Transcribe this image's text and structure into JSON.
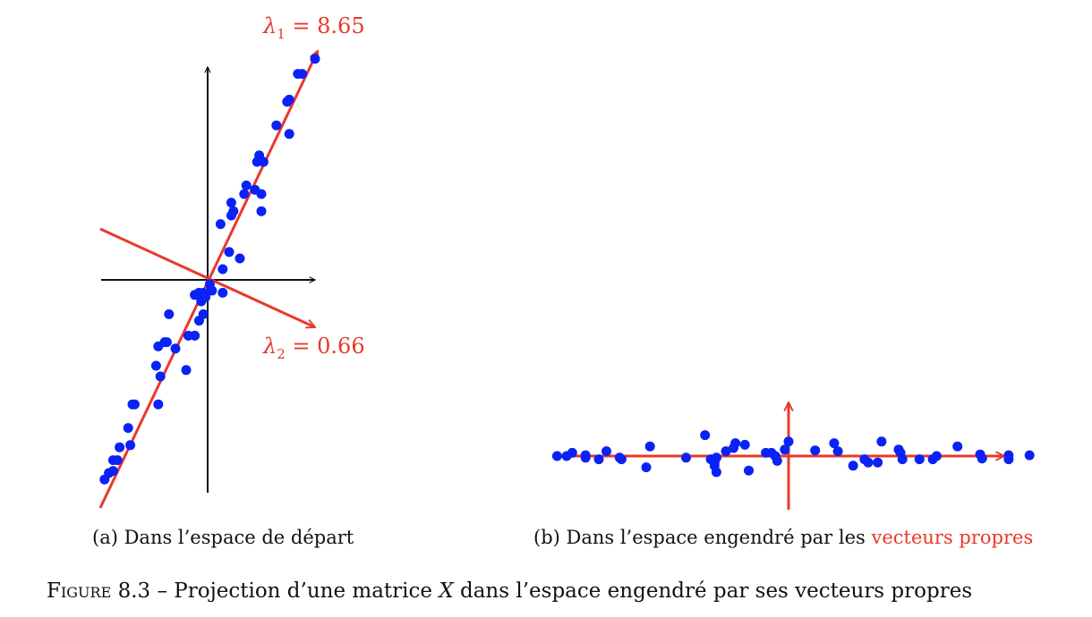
{
  "panel_a": {
    "caption": "(a) Dans l’espace de départ",
    "lambda1": {
      "symbol": "λ",
      "sub": "1",
      "value": "= 8.65"
    },
    "lambda2": {
      "symbol": "λ",
      "sub": "2",
      "value": "= 0.66"
    }
  },
  "panel_b": {
    "caption_prefix": "(b) Dans l’espace engendré par les ",
    "caption_highlight": "vecteurs propres"
  },
  "figure_caption": {
    "label": "Figure 8.3",
    "dash": " – Projection d’une matrice ",
    "math": "X",
    "rest": " dans l’espace engendré par ses vecteurs propres"
  },
  "colors": {
    "points": "#0a22f5",
    "eigen": "#e8392b",
    "axes": "#111111"
  },
  "chart_data": [
    {
      "type": "scatter",
      "title": "",
      "xlabel": "",
      "ylabel": "",
      "xlim": [
        -4.9,
        5.1
      ],
      "ylim": [
        -10.4,
        10.4
      ],
      "eigenvectors": [
        {
          "direction": [
            0.45,
            1
          ],
          "lambda": 8.65
        },
        {
          "direction": [
            1,
            -0.45
          ],
          "lambda": 0.66
        }
      ],
      "points": [
        [
          -4.8,
          -9.3
        ],
        [
          -4.6,
          -9.0
        ],
        [
          -4.4,
          -8.9
        ],
        [
          -4.4,
          -8.4
        ],
        [
          -4.2,
          -8.4
        ],
        [
          -4.1,
          -7.8
        ],
        [
          -3.6,
          -7.7
        ],
        [
          -3.7,
          -6.9
        ],
        [
          -3.4,
          -5.8
        ],
        [
          -3.5,
          -5.8
        ],
        [
          -2.3,
          -5.8
        ],
        [
          -2.2,
          -4.5
        ],
        [
          -2.4,
          -4.0
        ],
        [
          -2.3,
          -3.1
        ],
        [
          -2.0,
          -2.9
        ],
        [
          -1.9,
          -2.9
        ],
        [
          -1.5,
          -3.2
        ],
        [
          -1.8,
          -1.6
        ],
        [
          -0.9,
          -2.6
        ],
        [
          -1.0,
          -4.2
        ],
        [
          -0.4,
          -1.9
        ],
        [
          -0.6,
          -2.6
        ],
        [
          -0.2,
          -1.6
        ],
        [
          -0.3,
          -1.0
        ],
        [
          -0.4,
          -0.6
        ],
        [
          -0.2,
          -0.6
        ],
        [
          -0.1,
          -0.8
        ],
        [
          -0.6,
          -0.7
        ],
        [
          0.2,
          -0.5
        ],
        [
          0.1,
          -0.2
        ],
        [
          0.7,
          -0.6
        ],
        [
          0.7,
          0.5
        ],
        [
          1.0,
          1.3
        ],
        [
          1.5,
          1.0
        ],
        [
          0.6,
          2.6
        ],
        [
          1.1,
          3.0
        ],
        [
          1.2,
          3.2
        ],
        [
          1.1,
          3.6
        ],
        [
          1.7,
          4.0
        ],
        [
          1.8,
          4.4
        ],
        [
          2.2,
          4.2
        ],
        [
          2.5,
          4.0
        ],
        [
          2.5,
          3.2
        ],
        [
          2.3,
          5.5
        ],
        [
          2.6,
          5.5
        ],
        [
          2.4,
          5.8
        ],
        [
          3.2,
          7.2
        ],
        [
          3.8,
          6.8
        ],
        [
          3.7,
          8.3
        ],
        [
          3.8,
          8.4
        ],
        [
          4.2,
          9.6
        ],
        [
          4.4,
          9.6
        ],
        [
          5.0,
          10.3
        ]
      ]
    },
    {
      "type": "scatter",
      "title": "",
      "xlabel": "",
      "ylabel": "",
      "xlim": [
        -13,
        13
      ],
      "ylim": [
        -3,
        3
      ],
      "eigen_axes": [
        {
          "direction": [
            1,
            0
          ],
          "lambda": 8.65
        },
        {
          "direction": [
            0,
            1
          ],
          "lambda": 0.66
        }
      ],
      "points": [
        [
          -12.2,
          0
        ],
        [
          -11.7,
          0
        ],
        [
          -11.4,
          0.2
        ],
        [
          -10.7,
          0.05
        ],
        [
          -10.7,
          -0.1
        ],
        [
          -10.0,
          -0.2
        ],
        [
          -9.6,
          0.3
        ],
        [
          -8.9,
          -0.1
        ],
        [
          -8.8,
          -0.2
        ],
        [
          -7.5,
          -0.7
        ],
        [
          -7.3,
          0.6
        ],
        [
          -5.4,
          -0.1
        ],
        [
          -4.4,
          1.3
        ],
        [
          -4.1,
          -0.2
        ],
        [
          -3.9,
          -0.4
        ],
        [
          -3.9,
          -0.6
        ],
        [
          -3.8,
          -1.0
        ],
        [
          -3.8,
          -0.1
        ],
        [
          -3.3,
          0.3
        ],
        [
          -2.9,
          0.5
        ],
        [
          -2.8,
          0.8
        ],
        [
          -2.3,
          0.7
        ],
        [
          -2.1,
          -0.9
        ],
        [
          -1.2,
          0.2
        ],
        [
          -0.9,
          0.2
        ],
        [
          -0.7,
          0
        ],
        [
          -0.6,
          -0.3
        ],
        [
          -0.2,
          0.4
        ],
        [
          0,
          0.9
        ],
        [
          1.4,
          0.35
        ],
        [
          2.4,
          0.8
        ],
        [
          2.6,
          0.3
        ],
        [
          3.4,
          -0.6
        ],
        [
          4.0,
          -0.2
        ],
        [
          4.2,
          -0.4
        ],
        [
          4.7,
          -0.4
        ],
        [
          4.9,
          0.9
        ],
        [
          5.8,
          0.4
        ],
        [
          5.9,
          0.2
        ],
        [
          6.0,
          -0.2
        ],
        [
          6.9,
          -0.2
        ],
        [
          7.6,
          -0.2
        ],
        [
          7.8,
          0
        ],
        [
          8.9,
          0.6
        ],
        [
          10.1,
          0.1
        ],
        [
          10.2,
          -0.15
        ],
        [
          11.6,
          0.05
        ],
        [
          11.6,
          -0.2
        ],
        [
          12.7,
          0.05
        ]
      ]
    }
  ]
}
